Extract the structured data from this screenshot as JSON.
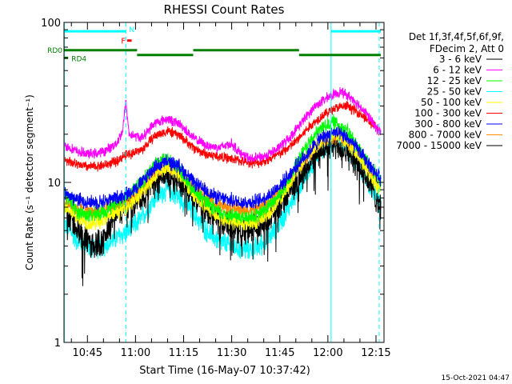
{
  "chart_data": {
    "type": "line",
    "title": "RHESSI Count Rates",
    "xlabel": "Start Time (16-May-07 10:37:42)",
    "ylabel": "Count Rate (s⁻¹ detector segment⁻¹)",
    "x_unit": "minutes of day",
    "xlim": [
      637.7,
      737.5
    ],
    "ylim": [
      1,
      100
    ],
    "y_scale": "log",
    "x_ticks": [
      {
        "v": 645,
        "label": "10:45"
      },
      {
        "v": 660,
        "label": "11:00"
      },
      {
        "v": 675,
        "label": "11:15"
      },
      {
        "v": 690,
        "label": "11:30"
      },
      {
        "v": 705,
        "label": "11:45"
      },
      {
        "v": 720,
        "label": "12:00"
      },
      {
        "v": 735,
        "label": "12:15"
      }
    ],
    "y_ticks": [
      {
        "v": 1,
        "label": "1"
      },
      {
        "v": 10,
        "label": "10"
      },
      {
        "v": 100,
        "label": "100"
      }
    ],
    "legend": {
      "placement": "right",
      "header": [
        "Det 1f,3f,4f,5f,6f,9f,",
        "FDecim 2, Att 0"
      ]
    },
    "series": [
      {
        "name": "3 - 6 keV",
        "color": "#000000",
        "values": [
          [
            638,
            7.0
          ],
          [
            642,
            5.0
          ],
          [
            646,
            4.0
          ],
          [
            650,
            4.3
          ],
          [
            654,
            6.5
          ],
          [
            656,
            7.0
          ],
          [
            658,
            7.2
          ],
          [
            662,
            8.0
          ],
          [
            666,
            10.5
          ],
          [
            670,
            11.5
          ],
          [
            674,
            10.0
          ],
          [
            678,
            8.0
          ],
          [
            682,
            6.5
          ],
          [
            686,
            5.7
          ],
          [
            690,
            5.3
          ],
          [
            694,
            5.0
          ],
          [
            698,
            5.2
          ],
          [
            702,
            6.2
          ],
          [
            706,
            7.5
          ],
          [
            710,
            10.0
          ],
          [
            714,
            13.0
          ],
          [
            718,
            16.0
          ],
          [
            722,
            17.5
          ],
          [
            726,
            16.0
          ],
          [
            730,
            12.5
          ],
          [
            734,
            9.0
          ],
          [
            736.5,
            7.0
          ]
        ]
      },
      {
        "name": "6 - 12 keV",
        "color": "#ff00ff",
        "values": [
          [
            638,
            17.0
          ],
          [
            642,
            15.5
          ],
          [
            646,
            15.0
          ],
          [
            650,
            15.5
          ],
          [
            654,
            17.5
          ],
          [
            656,
            21.0
          ],
          [
            657,
            32.0
          ],
          [
            658,
            20.0
          ],
          [
            662,
            19.0
          ],
          [
            666,
            23.5
          ],
          [
            670,
            25.0
          ],
          [
            674,
            23.0
          ],
          [
            678,
            19.0
          ],
          [
            682,
            17.0
          ],
          [
            686,
            16.5
          ],
          [
            690,
            17.5
          ],
          [
            693,
            15.0
          ],
          [
            696,
            14.0
          ],
          [
            700,
            14.5
          ],
          [
            704,
            16.0
          ],
          [
            708,
            19.0
          ],
          [
            712,
            24.0
          ],
          [
            716,
            30.0
          ],
          [
            720,
            34.0
          ],
          [
            724,
            37.0
          ],
          [
            728,
            33.0
          ],
          [
            732,
            27.0
          ],
          [
            735,
            22.0
          ],
          [
            736.5,
            20.5
          ]
        ]
      },
      {
        "name": "12 - 25 keV",
        "color": "#00ff00",
        "values": [
          [
            638,
            8.5
          ],
          [
            642,
            6.5
          ],
          [
            646,
            6.2
          ],
          [
            650,
            6.5
          ],
          [
            654,
            7.5
          ],
          [
            658,
            8.5
          ],
          [
            662,
            10.0
          ],
          [
            666,
            13.0
          ],
          [
            670,
            14.0
          ],
          [
            674,
            12.0
          ],
          [
            678,
            9.0
          ],
          [
            682,
            7.5
          ],
          [
            686,
            6.5
          ],
          [
            690,
            6.2
          ],
          [
            694,
            6.0
          ],
          [
            698,
            6.2
          ],
          [
            702,
            7.2
          ],
          [
            706,
            9.0
          ],
          [
            710,
            13.0
          ],
          [
            714,
            17.5
          ],
          [
            718,
            22.0
          ],
          [
            722,
            24.0
          ],
          [
            726,
            21.0
          ],
          [
            730,
            16.0
          ],
          [
            734,
            12.0
          ],
          [
            736.5,
            10.0
          ]
        ]
      },
      {
        "name": "25 - 50 keV",
        "color": "#00ffff",
        "values": [
          [
            638,
            5.5
          ],
          [
            642,
            4.3
          ],
          [
            646,
            3.9
          ],
          [
            650,
            4.0
          ],
          [
            654,
            4.5
          ],
          [
            658,
            5.0
          ],
          [
            662,
            6.0
          ],
          [
            666,
            8.0
          ],
          [
            670,
            9.0
          ],
          [
            674,
            8.0
          ],
          [
            678,
            6.5
          ],
          [
            682,
            5.0
          ],
          [
            686,
            4.3
          ],
          [
            690,
            4.0
          ],
          [
            694,
            3.8
          ],
          [
            698,
            3.9
          ],
          [
            702,
            4.6
          ],
          [
            706,
            6.0
          ],
          [
            710,
            8.5
          ],
          [
            714,
            12.0
          ],
          [
            718,
            16.0
          ],
          [
            722,
            18.5
          ],
          [
            726,
            16.5
          ],
          [
            730,
            12.5
          ],
          [
            734,
            9.0
          ],
          [
            736.5,
            7.5
          ]
        ]
      },
      {
        "name": "50 - 100 keV",
        "color": "#ffff00",
        "values": [
          [
            638,
            7.0
          ],
          [
            642,
            6.0
          ],
          [
            646,
            5.5
          ],
          [
            650,
            5.8
          ],
          [
            654,
            6.5
          ],
          [
            658,
            7.2
          ],
          [
            662,
            8.5
          ],
          [
            666,
            11.0
          ],
          [
            670,
            12.5
          ],
          [
            674,
            11.0
          ],
          [
            678,
            8.5
          ],
          [
            682,
            7.0
          ],
          [
            686,
            6.0
          ],
          [
            690,
            5.7
          ],
          [
            694,
            5.5
          ],
          [
            698,
            5.7
          ],
          [
            702,
            6.5
          ],
          [
            706,
            8.2
          ],
          [
            710,
            11.5
          ],
          [
            714,
            15.0
          ],
          [
            718,
            18.5
          ],
          [
            722,
            20.0
          ],
          [
            726,
            18.0
          ],
          [
            730,
            14.0
          ],
          [
            734,
            10.5
          ],
          [
            736.5,
            9.0
          ]
        ]
      },
      {
        "name": "100 - 300 keV",
        "color": "#ff0000",
        "values": [
          [
            638,
            14.0
          ],
          [
            642,
            12.8
          ],
          [
            646,
            12.5
          ],
          [
            650,
            12.8
          ],
          [
            654,
            13.5
          ],
          [
            656,
            14.5
          ],
          [
            658,
            15.0
          ],
          [
            662,
            16.0
          ],
          [
            666,
            19.5
          ],
          [
            670,
            21.0
          ],
          [
            674,
            19.5
          ],
          [
            678,
            16.5
          ],
          [
            682,
            15.0
          ],
          [
            686,
            14.5
          ],
          [
            690,
            14.0
          ],
          [
            694,
            13.5
          ],
          [
            698,
            13.2
          ],
          [
            702,
            14.0
          ],
          [
            706,
            15.5
          ],
          [
            710,
            18.0
          ],
          [
            714,
            22.0
          ],
          [
            718,
            26.0
          ],
          [
            722,
            29.0
          ],
          [
            726,
            30.0
          ],
          [
            730,
            27.0
          ],
          [
            734,
            23.0
          ],
          [
            736.5,
            20.5
          ]
        ]
      },
      {
        "name": "300 - 800 keV",
        "color": "#0000ff",
        "values": [
          [
            638,
            8.5
          ],
          [
            642,
            7.8
          ],
          [
            646,
            7.5
          ],
          [
            650,
            7.6
          ],
          [
            654,
            8.0
          ],
          [
            658,
            8.6
          ],
          [
            662,
            10.0
          ],
          [
            666,
            12.5
          ],
          [
            670,
            13.5
          ],
          [
            674,
            12.5
          ],
          [
            678,
            10.0
          ],
          [
            682,
            8.8
          ],
          [
            686,
            8.0
          ],
          [
            690,
            7.7
          ],
          [
            694,
            7.5
          ],
          [
            698,
            7.6
          ],
          [
            702,
            8.4
          ],
          [
            706,
            10.0
          ],
          [
            710,
            12.5
          ],
          [
            714,
            15.5
          ],
          [
            718,
            19.0
          ],
          [
            722,
            20.5
          ],
          [
            726,
            19.0
          ],
          [
            730,
            15.5
          ],
          [
            734,
            12.0
          ],
          [
            736.5,
            10.5
          ]
        ]
      },
      {
        "name": "800 - 7000 keV",
        "color": "#ff8c00",
        "values": [
          [
            638,
            7.5
          ],
          [
            642,
            6.8
          ],
          [
            646,
            6.5
          ],
          [
            650,
            6.6
          ],
          [
            654,
            7.0
          ],
          [
            658,
            7.6
          ],
          [
            662,
            9.0
          ],
          [
            666,
            11.5
          ],
          [
            670,
            12.5
          ],
          [
            674,
            11.5
          ],
          [
            678,
            9.2
          ],
          [
            682,
            8.0
          ],
          [
            686,
            7.2
          ],
          [
            690,
            6.9
          ],
          [
            694,
            6.7
          ],
          [
            698,
            6.8
          ],
          [
            702,
            7.6
          ],
          [
            706,
            9.2
          ],
          [
            710,
            11.8
          ],
          [
            714,
            14.8
          ],
          [
            718,
            18.0
          ],
          [
            722,
            19.5
          ],
          [
            726,
            18.0
          ],
          [
            730,
            14.5
          ],
          [
            734,
            11.0
          ],
          [
            736.5,
            9.5
          ]
        ]
      }
    ],
    "legend_extra": [
      {
        "name": "7000 - 15000 keV",
        "color": "#000000"
      }
    ],
    "flags": [
      {
        "name": "attenuator",
        "color": "#00ffff",
        "y": 88,
        "segments": [
          [
            637.7,
            657.0
          ],
          [
            721.0,
            736.5
          ]
        ],
        "label": "N",
        "label_x": 658.0
      },
      {
        "name": "RD0",
        "color": "#008000",
        "y": 67,
        "segments": [
          [
            637.7,
            660.5
          ],
          [
            660.5,
            678.0
          ],
          [
            678.0,
            711.0
          ],
          [
            711.0,
            736.5
          ]
        ],
        "stepped": true,
        "label": "RD0"
      },
      {
        "name": "RD4",
        "color": "#008000",
        "y": 60,
        "segments": [
          [
            637.8,
            639.0
          ]
        ],
        "label": "RD4"
      },
      {
        "name": "F",
        "color": "#ff0000",
        "y": 77,
        "segments": [
          [
            657.4,
            658.8
          ]
        ],
        "label": "F"
      }
    ],
    "vlines": [
      {
        "x": 657.0,
        "color": "#00ffff",
        "dashed": true
      },
      {
        "x": 721.0,
        "color": "#00ffff",
        "dashed": false
      },
      {
        "x": 736.0,
        "color": "#00ffff",
        "dashed": true
      },
      {
        "x": 637.8,
        "color": "#00ffff",
        "dashed": false
      }
    ]
  },
  "footer": {
    "timestamp": "15-Oct-2021 04:47"
  }
}
